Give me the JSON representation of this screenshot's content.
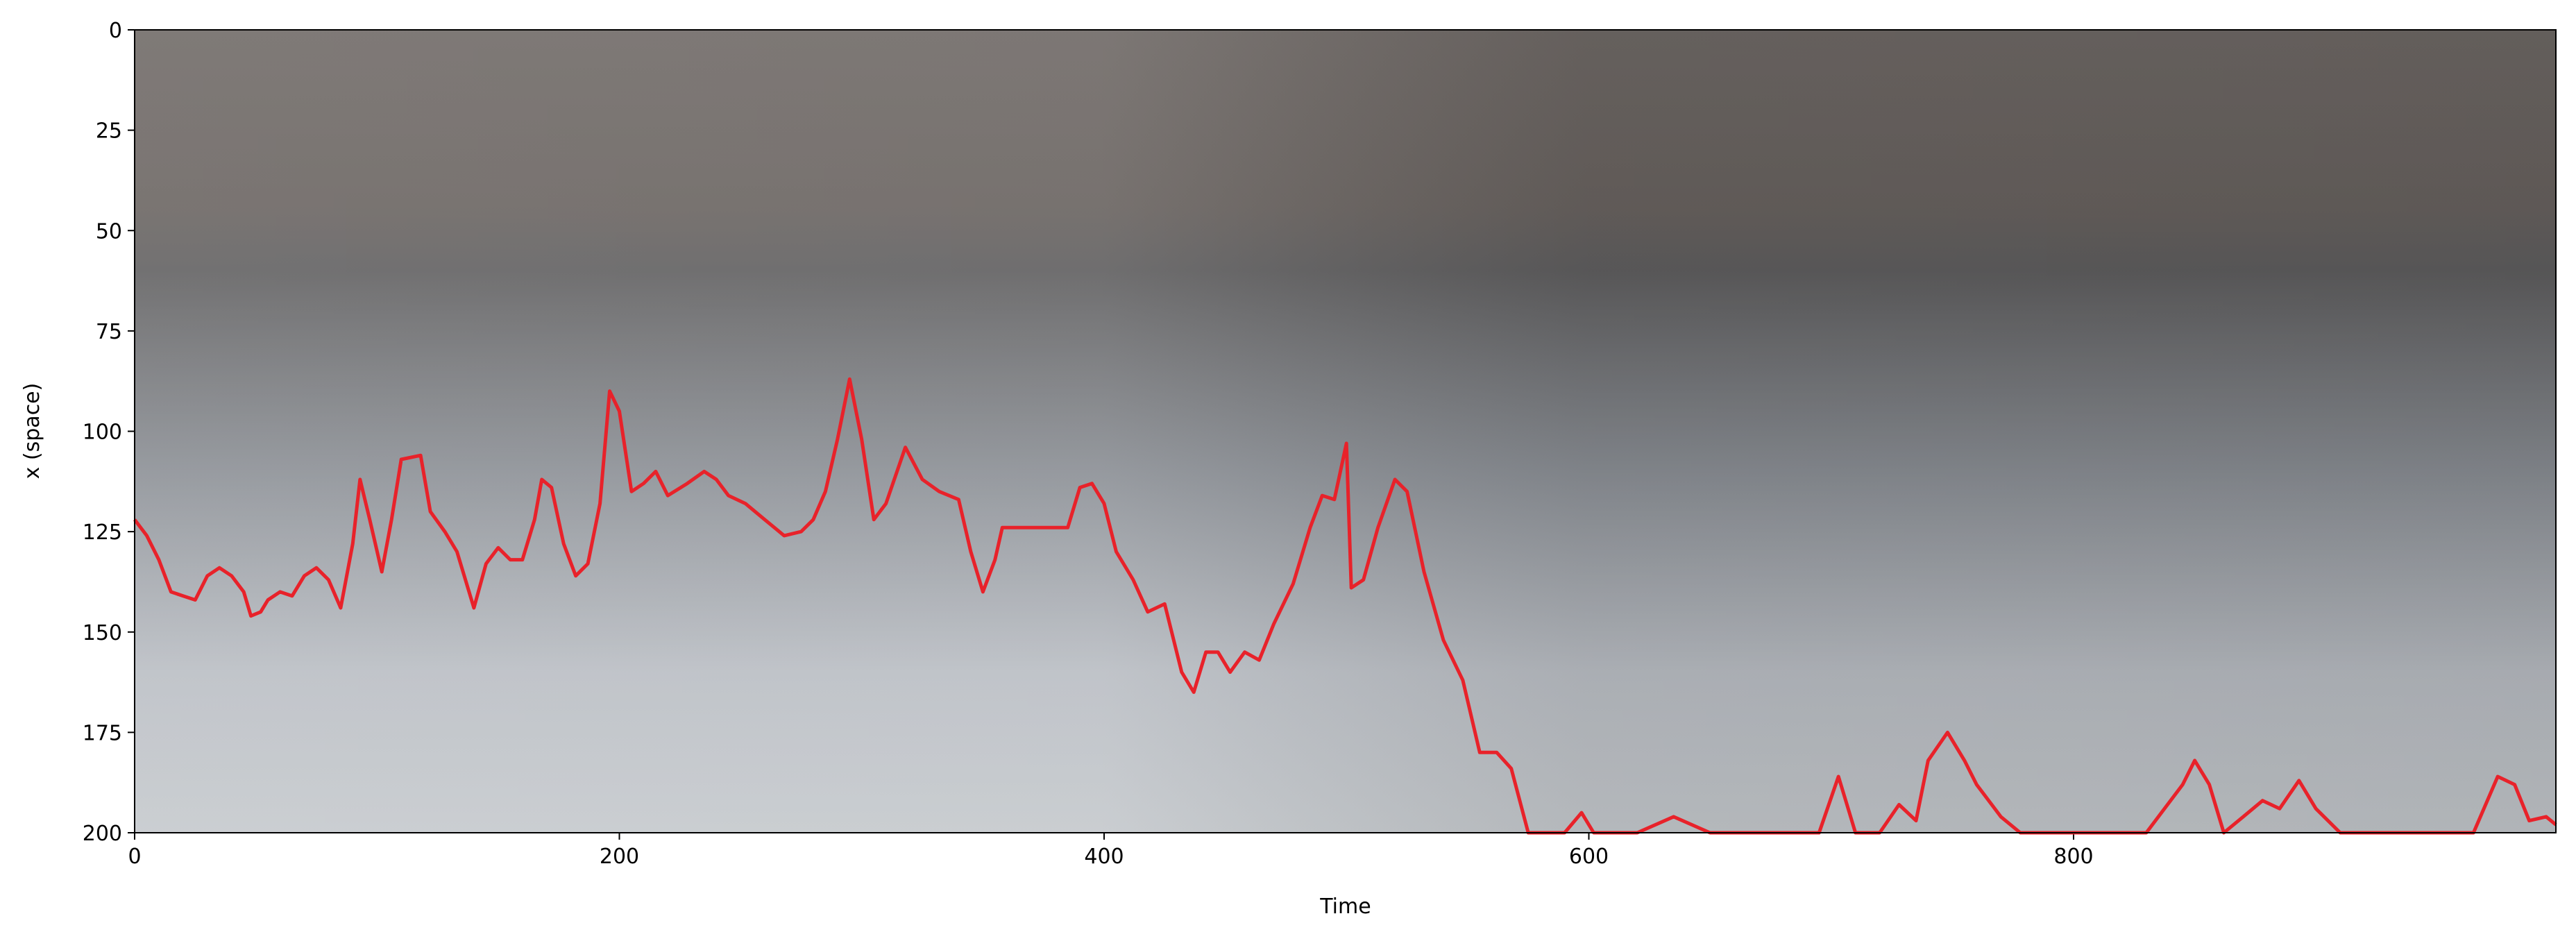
{
  "chart_data": {
    "type": "line",
    "xlabel": "Time",
    "ylabel": "x (space)",
    "xlim": [
      0,
      999
    ],
    "ylim": [
      200,
      0
    ],
    "xticks": [
      0,
      200,
      400,
      600,
      800
    ],
    "yticks": [
      0,
      25,
      50,
      75,
      100,
      125,
      150,
      175,
      200
    ],
    "y_inverted": true,
    "series": [
      {
        "color": "#e8222a",
        "x": [
          0,
          5,
          10,
          15,
          20,
          25,
          30,
          35,
          40,
          45,
          48,
          52,
          55,
          60,
          65,
          70,
          75,
          80,
          85,
          90,
          93,
          97,
          102,
          106,
          110,
          118,
          122,
          128,
          133,
          140,
          145,
          150,
          155,
          160,
          165,
          168,
          172,
          177,
          182,
          187,
          192,
          196,
          200,
          205,
          210,
          215,
          220,
          228,
          235,
          240,
          245,
          252,
          260,
          268,
          275,
          280,
          285,
          290,
          295,
          300,
          305,
          310,
          318,
          325,
          332,
          340,
          345,
          350,
          355,
          358,
          370,
          385,
          390,
          395,
          400,
          405,
          412,
          418,
          425,
          432,
          437,
          442,
          447,
          452,
          458,
          464,
          470,
          478,
          485,
          490,
          495,
          500,
          502,
          507,
          513,
          520,
          525,
          532,
          540,
          548,
          555,
          562,
          568,
          575,
          590,
          597,
          602,
          620,
          635,
          650,
          695,
          703,
          710,
          720,
          728,
          735,
          740,
          748,
          755,
          760,
          770,
          778,
          830,
          845,
          850,
          856,
          862,
          870,
          878,
          885,
          893,
          900,
          910,
          965,
          975,
          982,
          988,
          995,
          999
        ],
        "values": [
          122,
          126,
          132,
          140,
          141,
          142,
          136,
          134,
          136,
          140,
          146,
          145,
          142,
          140,
          141,
          136,
          134,
          137,
          144,
          128,
          112,
          122,
          135,
          122,
          107,
          106,
          120,
          125,
          130,
          144,
          133,
          129,
          132,
          132,
          122,
          112,
          114,
          128,
          136,
          133,
          118,
          90,
          95,
          115,
          113,
          110,
          116,
          113,
          110,
          112,
          116,
          118,
          122,
          126,
          125,
          122,
          115,
          102,
          87,
          102,
          122,
          118,
          104,
          112,
          115,
          117,
          130,
          140,
          132,
          124,
          124,
          124,
          114,
          113,
          118,
          130,
          137,
          145,
          143,
          160,
          165,
          155,
          155,
          160,
          155,
          157,
          148,
          138,
          124,
          116,
          117,
          103,
          139,
          137,
          124,
          112,
          115,
          135,
          152,
          162,
          180,
          180,
          184,
          200,
          200,
          195,
          200,
          200,
          196,
          200,
          200,
          186,
          200,
          200,
          193,
          197,
          182,
          175,
          182,
          188,
          196,
          200,
          200,
          188,
          182,
          188,
          200,
          196,
          192,
          194,
          187,
          194,
          200,
          200,
          186,
          188,
          197,
          196,
          198
        ]
      }
    ]
  }
}
